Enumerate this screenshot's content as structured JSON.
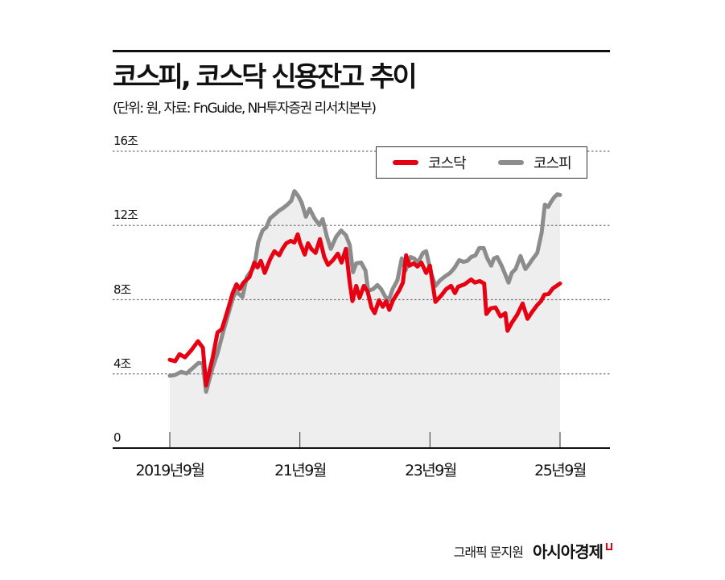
{
  "header": {
    "title": "코스피, 코스닥 신용잔고 추이",
    "subtitle": "(단위: 원, 자료: FnGuide, NH투자증권 리서치본부)"
  },
  "footer": {
    "credit": "그래픽 문지원",
    "brand": "아시아경제"
  },
  "colors": {
    "kosdaq": "#e60012",
    "kospi": "#8c8c8c",
    "area": "#eeeeee",
    "grid": "#777777"
  },
  "chart_data": {
    "type": "line",
    "title": "코스피, 코스닥 신용잔고 추이",
    "subtitle": "(단위: 원, 자료: FnGuide, NH투자증권 리서치본부)",
    "xlabel": "",
    "ylabel": "",
    "unit": "조 원",
    "ylim": [
      0,
      16
    ],
    "yticks": [
      0,
      4,
      8,
      12,
      16
    ],
    "ytick_labels": [
      "0",
      "4조",
      "8조",
      "12조",
      "16조"
    ],
    "x_unit": "months since 2019-09",
    "xlim": [
      0,
      72
    ],
    "xticks": [
      0,
      24,
      48,
      72
    ],
    "xtick_labels": [
      "2019년9월",
      "21년9월",
      "23년9월",
      "25년9월"
    ],
    "grid": "horizontal dotted",
    "legend": {
      "position": "top-right",
      "entries": [
        "코스닥",
        "코스피"
      ]
    },
    "area_fill_series": "코스피",
    "series": [
      {
        "name": "코스닥",
        "color": "#e60012",
        "x": [
          0,
          1,
          1.8,
          2.8,
          4,
          5.2,
          6.1,
          6.7,
          7.9,
          8.8,
          9.6,
          10.7,
          11.6,
          12.3,
          12.9,
          13.6,
          14.7,
          15.6,
          16.2,
          16.8,
          17.5,
          18.5,
          19.3,
          20.2,
          20.8,
          21.5,
          22.3,
          23,
          23.6,
          24,
          24.9,
          25.5,
          26.1,
          26.9,
          27.7,
          28.5,
          29.2,
          30.1,
          31,
          31.7,
          32.5,
          33.2,
          33.7,
          34.4,
          35,
          35.8,
          36.5,
          37.2,
          37.8,
          38.6,
          39.3,
          39.9,
          40.5,
          41.2,
          42.3,
          43,
          43.6,
          44.2,
          45,
          45.7,
          46.4,
          47.3,
          48,
          49,
          50.1,
          51,
          51.9,
          52.6,
          53.2,
          54.4,
          55.6,
          56.3,
          57.2,
          58,
          58.4,
          59.2,
          60.1,
          61,
          61.9,
          62.3,
          63.1,
          64.1,
          65.1,
          66,
          66.9,
          67.8,
          68.5,
          69.1,
          69.9,
          70.7,
          72
        ],
        "values": [
          4.76,
          4.68,
          5.06,
          4.89,
          5.28,
          5.76,
          5.41,
          3.38,
          4.85,
          6.23,
          6.41,
          7.45,
          8.35,
          8.83,
          8.57,
          8.92,
          9.22,
          10.0,
          9.74,
          10.09,
          9.44,
          10.17,
          10.61,
          10.39,
          10.74,
          11.04,
          11.17,
          11.08,
          11.52,
          11.08,
          10.43,
          11.04,
          10.74,
          10.52,
          11.26,
          10.3,
          9.87,
          10.13,
          10.48,
          10.0,
          10.74,
          8.92,
          7.92,
          8.74,
          8.1,
          8.74,
          8.44,
          7.58,
          7.27,
          7.97,
          7.62,
          7.92,
          7.45,
          7.97,
          8.48,
          8.92,
          10.39,
          9.83,
          9.96,
          9.78,
          10.0,
          9.44,
          9.83,
          7.88,
          8.23,
          8.57,
          8.74,
          8.35,
          8.7,
          8.83,
          9.09,
          8.92,
          9.0,
          8.87,
          7.23,
          7.53,
          7.58,
          7.1,
          7.27,
          6.32,
          6.75,
          7.19,
          7.79,
          6.97,
          7.36,
          7.71,
          7.92,
          8.27,
          8.31,
          8.61,
          8.87
        ]
      },
      {
        "name": "코스피",
        "color": "#8c8c8c",
        "x": [
          0,
          1,
          2.1,
          3.1,
          4.3,
          5.3,
          6.1,
          6.7,
          7.9,
          8.8,
          9.9,
          11.1,
          11.7,
          12.3,
          13.4,
          14.2,
          15.6,
          16.3,
          17.1,
          17.8,
          18.5,
          19.4,
          20.2,
          20.9,
          21.7,
          22.4,
          23,
          23.7,
          24.3,
          25.1,
          25.8,
          26.7,
          27.6,
          28.2,
          29,
          29.7,
          30.7,
          31.6,
          32.5,
          33.2,
          33.8,
          34.4,
          35.3,
          36.1,
          36.6,
          37.5,
          38.3,
          39,
          39.8,
          40.4,
          41.1,
          42,
          42.8,
          43.5,
          44.4,
          45.1,
          45.8,
          46.7,
          47.3,
          48.2,
          49,
          49.9,
          50.8,
          51.7,
          52.5,
          53.4,
          54.2,
          54.9,
          55.6,
          56.4,
          57.1,
          57.9,
          58.6,
          59.3,
          59.8,
          60.4,
          61.3,
          61.9,
          62.5,
          63.1,
          63.8,
          64.7,
          65.6,
          66.2,
          66.9,
          67.8,
          68.6,
          69.2,
          69.8,
          70.3,
          70.9,
          71.5,
          72
        ],
        "values": [
          3.9,
          3.94,
          4.11,
          4.03,
          4.33,
          4.59,
          4.55,
          3.03,
          4.33,
          5.11,
          6.32,
          7.53,
          8.14,
          8.44,
          8.14,
          9.22,
          9.78,
          11.08,
          11.73,
          11.9,
          12.38,
          12.6,
          12.81,
          12.94,
          13.12,
          13.33,
          13.85,
          13.59,
          13.25,
          12.47,
          12.9,
          12.38,
          12.03,
          12.34,
          11.39,
          10.74,
          11.39,
          11.73,
          11.47,
          10.95,
          9.48,
          9.96,
          10.0,
          9.57,
          8.48,
          8.57,
          8.79,
          8.57,
          8.14,
          7.97,
          8.57,
          9.05,
          10.22,
          9.57,
          10.3,
          10.22,
          10.0,
          10.52,
          10.61,
          9.44,
          8.74,
          9.05,
          9.26,
          9.44,
          9.7,
          10.13,
          10.04,
          10.09,
          10.3,
          10.39,
          10.78,
          10.78,
          10.22,
          9.83,
          10.22,
          10.3,
          9.78,
          9.35,
          8.92,
          9.44,
          9.65,
          10.35,
          9.65,
          9.87,
          10.17,
          10.52,
          11.6,
          13.12,
          12.99,
          13.25,
          13.51,
          13.68,
          13.64
        ]
      }
    ]
  }
}
